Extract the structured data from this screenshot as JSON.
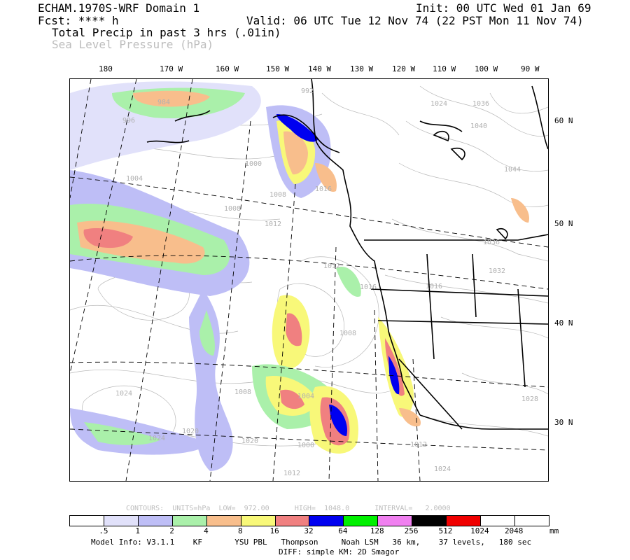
{
  "header": {
    "model_title": "ECHAM.1970S-WRF Domain 1",
    "init": "Init: 00 UTC Wed 01 Jan 69",
    "fcst": "Fcst: **** h",
    "valid": "Valid: 06 UTC Tue 12 Nov 74 (22 PST Mon 11 Nov 74)",
    "field1": "Total Precip in past 3 hrs (.01in)",
    "field2": "Sea Level Pressure (hPa)"
  },
  "map": {
    "lon_labels": [
      "180",
      "170 W",
      "160 W",
      "150 W",
      "140 W",
      "130 W",
      "120 W",
      "110 W",
      "100 W",
      "90 W"
    ],
    "lat_labels": [
      "60 N",
      "50 N",
      "40 N",
      "30 N"
    ],
    "slp_labels": [
      "992",
      "984",
      "996",
      "1000",
      "1004",
      "1008",
      "1008",
      "1012",
      "1016",
      "1024",
      "1036",
      "1040",
      "1044",
      "1036",
      "1032",
      "1012",
      "1016",
      "1008",
      "1004",
      "1000",
      "1008",
      "1020",
      "1012",
      "1024",
      "1012",
      "1024",
      "1020",
      "1028",
      "1024",
      "1016"
    ]
  },
  "contours_info": "CONTOURS:  UNITS=hPa  LOW=  972.00      HIGH=  1048.0      INTERVAL=   2.0000",
  "colorbar": {
    "colors": [
      "#ffffff",
      "#e1e1fa",
      "#bebef6",
      "#aaf0aa",
      "#f8be8c",
      "#f8f879",
      "#f08080",
      "#0000f0",
      "#00f000",
      "#f080f0",
      "#000000",
      "#f00000",
      "#ffffff",
      "#ffffff"
    ],
    "labels": [
      ".5",
      "1",
      "2",
      "4",
      "8",
      "16",
      "32",
      "64",
      "128",
      "256",
      "512",
      "1024",
      "2048"
    ],
    "units": "mm"
  },
  "footer": {
    "line1": "Model Info: V3.1.1    KF       YSU PBL   Thompson     Noah LSM   36 km,    37 levels,   180 sec",
    "line2": "DIFF: simple KM: 2D Smagor"
  }
}
